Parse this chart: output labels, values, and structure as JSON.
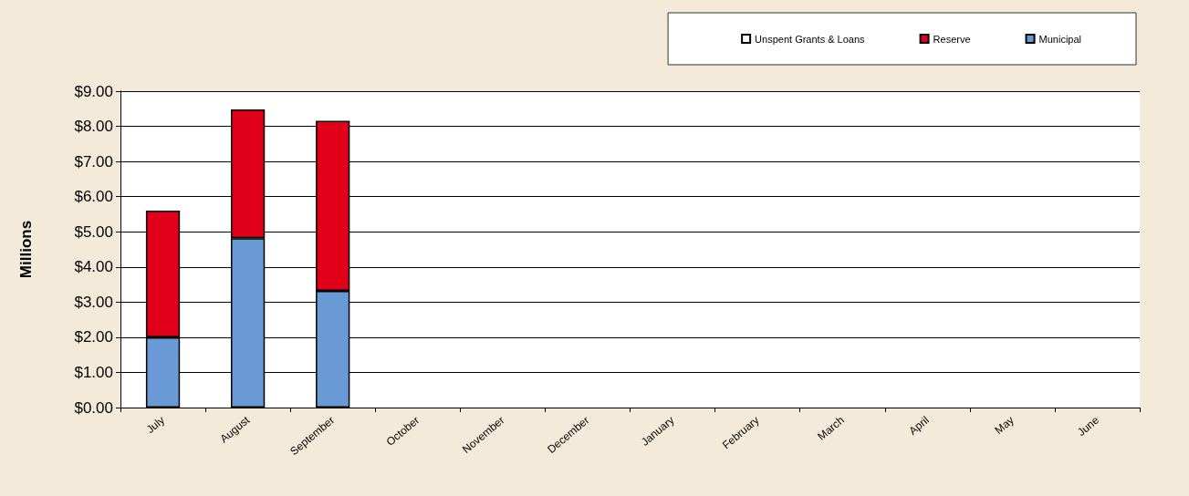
{
  "chart_data": {
    "type": "bar",
    "stacked": true,
    "ylabel": "Millions",
    "categories": [
      "July",
      "August",
      "September",
      "October",
      "November",
      "December",
      "January",
      "February",
      "March",
      "April",
      "May",
      "June"
    ],
    "series": [
      {
        "name": "Municipal",
        "color": "#6a9ad6",
        "values": [
          2.0,
          4.82,
          3.32,
          null,
          null,
          null,
          null,
          null,
          null,
          null,
          null,
          null
        ]
      },
      {
        "name": "Reserve",
        "color": "#e0001a",
        "values": [
          3.6,
          3.66,
          4.84,
          null,
          null,
          null,
          null,
          null,
          null,
          null,
          null,
          null
        ]
      },
      {
        "name": "Unspent Grants & Loans",
        "color": "#ffffff",
        "values": [
          null,
          null,
          null,
          null,
          null,
          null,
          null,
          null,
          null,
          null,
          null,
          null
        ]
      }
    ],
    "ylim": [
      0,
      9
    ],
    "yticks": [
      {
        "value": 0,
        "label": "$0.00"
      },
      {
        "value": 1,
        "label": "$1.00"
      },
      {
        "value": 2,
        "label": "$2.00"
      },
      {
        "value": 3,
        "label": "$3.00"
      },
      {
        "value": 4,
        "label": "$4.00"
      },
      {
        "value": 5,
        "label": "$5.00"
      },
      {
        "value": 6,
        "label": "$6.00"
      },
      {
        "value": 7,
        "label": "$7.00"
      },
      {
        "value": 8,
        "label": "$8.00"
      },
      {
        "value": 9,
        "label": "$9.00"
      }
    ],
    "grid": "y",
    "legend": "top right"
  }
}
